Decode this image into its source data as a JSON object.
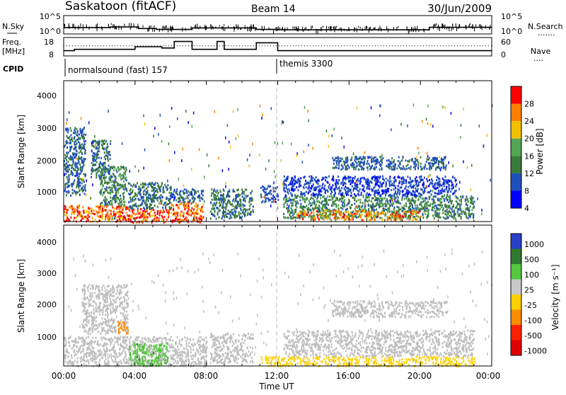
{
  "header": {
    "station": "Saskatoon (fitACF)",
    "beam": "Beam 14",
    "date": "30/Jun/2009"
  },
  "noise_panel": {
    "left_label": "N.Sky",
    "left_ticks": [
      "10^5",
      "10^0"
    ],
    "right_ticks": [
      "10^5",
      "10^0"
    ],
    "right_label": "N.Search",
    "right_marker": "......."
  },
  "freq_panel": {
    "left_label_top": "Freq.",
    "left_label_unit": "[MHz]",
    "left_ticks": [
      "18",
      "8"
    ],
    "right_ticks": [
      "60",
      "0"
    ],
    "right_label": "Nave",
    "right_marker": "...."
  },
  "cpid_panel": {
    "label": "CPID",
    "programs": [
      {
        "name": "normalsound (fast) 157",
        "start_hour": 0
      },
      {
        "name": "themis 3300",
        "start_hour": 12
      }
    ]
  },
  "power_panel": {
    "ylabel": "Slant Range [km]",
    "yticks": [
      "4000",
      "3000",
      "2000",
      "1000"
    ],
    "colorbar_label": "Power [dB]",
    "colorbar_ticks": [
      "28",
      "24",
      "20",
      "16",
      "12",
      "8",
      "4"
    ],
    "colors": [
      "#0000ff",
      "#1f4fbd",
      "#3a7a3a",
      "#52a552",
      "#f0c000",
      "#ff8000",
      "#ff0000"
    ]
  },
  "velocity_panel": {
    "ylabel": "Slant Range [km]",
    "yticks": [
      "4000",
      "3000",
      "2000",
      "1000"
    ],
    "colorbar_label": "Velocity [m s⁻¹]",
    "colorbar_ticks": [
      "1000",
      "500",
      "100",
      "25",
      "-25",
      "-100",
      "-500",
      "-1000"
    ],
    "colors": [
      "#2840c8",
      "#2f7a2f",
      "#55c840",
      "#c8c8c8",
      "#ffd000",
      "#ff8c00",
      "#ff2000",
      "#e00000"
    ],
    "ground_scatter_color": "#bebebe"
  },
  "xaxis": {
    "label": "Time UT",
    "ticks": [
      "00:00",
      "04:00",
      "08:00",
      "12:00",
      "16:00",
      "20:00",
      "00:00"
    ]
  },
  "chart_data": {
    "type": "heatmap",
    "title": "Saskatoon (fitACF)  Beam 14  30/Jun/2009",
    "xlabel": "Time UT",
    "xlim_hours": [
      0,
      24
    ],
    "ylabel": "Slant Range [km]",
    "ylim_km": [
      180,
      4500
    ],
    "freq_mhz_steps": [
      {
        "start": 0,
        "end": 0.6,
        "freq": 10
      },
      {
        "start": 0.6,
        "end": 4.0,
        "freq": 11
      },
      {
        "start": 4.0,
        "end": 5.5,
        "freq": 13
      },
      {
        "start": 5.5,
        "end": 6.2,
        "freq": 12
      },
      {
        "start": 6.2,
        "end": 7.2,
        "freq": 17
      },
      {
        "start": 7.2,
        "end": 8.6,
        "freq": 11
      },
      {
        "start": 8.6,
        "end": 9.0,
        "freq": 17
      },
      {
        "start": 9.0,
        "end": 10.8,
        "freq": 11
      },
      {
        "start": 10.8,
        "end": 12.0,
        "freq": 16
      },
      {
        "start": 12.0,
        "end": 24.0,
        "freq": 10
      }
    ],
    "nave_level": 33,
    "noise_sky_log10": [
      {
        "start": 0,
        "end": 2.6,
        "level": 1.6
      },
      {
        "start": 2.6,
        "end": 4.2,
        "level": 1.8
      },
      {
        "start": 4.2,
        "end": 5.2,
        "level": 1.3
      },
      {
        "start": 5.2,
        "end": 7.2,
        "level": 1.0
      },
      {
        "start": 7.2,
        "end": 10.8,
        "level": 1.5
      },
      {
        "start": 10.8,
        "end": 12.0,
        "level": 1.0
      },
      {
        "start": 12.0,
        "end": 20.5,
        "level": 0.9
      },
      {
        "start": 20.5,
        "end": 24.0,
        "level": 1.7
      }
    ],
    "power_regions_db": [
      {
        "t0": 0.0,
        "t1": 3.6,
        "r0": 200,
        "r1": 700,
        "value": 26
      },
      {
        "t0": 0.0,
        "t1": 1.2,
        "r0": 1000,
        "r1": 3100,
        "value": 9
      },
      {
        "t0": 1.5,
        "t1": 2.6,
        "r0": 1500,
        "r1": 2700,
        "value": 10
      },
      {
        "t0": 2.0,
        "t1": 3.5,
        "r0": 700,
        "r1": 1900,
        "value": 12
      },
      {
        "t0": 3.6,
        "t1": 6.0,
        "r0": 180,
        "r1": 600,
        "value": 27
      },
      {
        "t0": 3.6,
        "t1": 6.0,
        "r0": 600,
        "r1": 1400,
        "value": 10
      },
      {
        "t0": 6.0,
        "t1": 7.8,
        "r0": 180,
        "r1": 800,
        "value": 25
      },
      {
        "t0": 6.0,
        "t1": 7.8,
        "r0": 800,
        "r1": 1200,
        "value": 9
      },
      {
        "t0": 8.2,
        "t1": 10.6,
        "r0": 300,
        "r1": 1200,
        "value": 11
      },
      {
        "t0": 11.0,
        "t1": 12.0,
        "r0": 800,
        "r1": 1300,
        "value": 8
      },
      {
        "t0": 12.3,
        "t1": 23.0,
        "r0": 300,
        "r1": 1000,
        "value": 12
      },
      {
        "t0": 13.0,
        "t1": 20.0,
        "r0": 250,
        "r1": 550,
        "value": 22
      },
      {
        "t0": 12.3,
        "t1": 22.0,
        "r0": 1000,
        "r1": 1600,
        "value": 7
      },
      {
        "t0": 15.0,
        "t1": 21.5,
        "r0": 1800,
        "r1": 2200,
        "value": 9
      }
    ],
    "velocity_regions_ms": [
      {
        "t0": 0.0,
        "t1": 8.0,
        "r0": 200,
        "r1": 1100,
        "value": 10
      },
      {
        "t0": 1.0,
        "t1": 3.6,
        "r0": 1200,
        "r1": 2700,
        "value": 10
      },
      {
        "t0": 3.6,
        "t1": 5.8,
        "r0": 200,
        "r1": 900,
        "value": 80
      },
      {
        "t0": 3.0,
        "t1": 3.6,
        "r0": 1200,
        "r1": 1600,
        "value": -300
      },
      {
        "t0": 8.2,
        "t1": 10.6,
        "r0": 300,
        "r1": 1200,
        "value": 10
      },
      {
        "t0": 11.0,
        "t1": 23.0,
        "r0": 200,
        "r1": 500,
        "value": -60
      },
      {
        "t0": 12.3,
        "t1": 23.0,
        "r0": 500,
        "r1": 1300,
        "value": 10
      },
      {
        "t0": 15.0,
        "t1": 21.5,
        "r0": 1700,
        "r1": 2200,
        "value": 10
      }
    ]
  }
}
